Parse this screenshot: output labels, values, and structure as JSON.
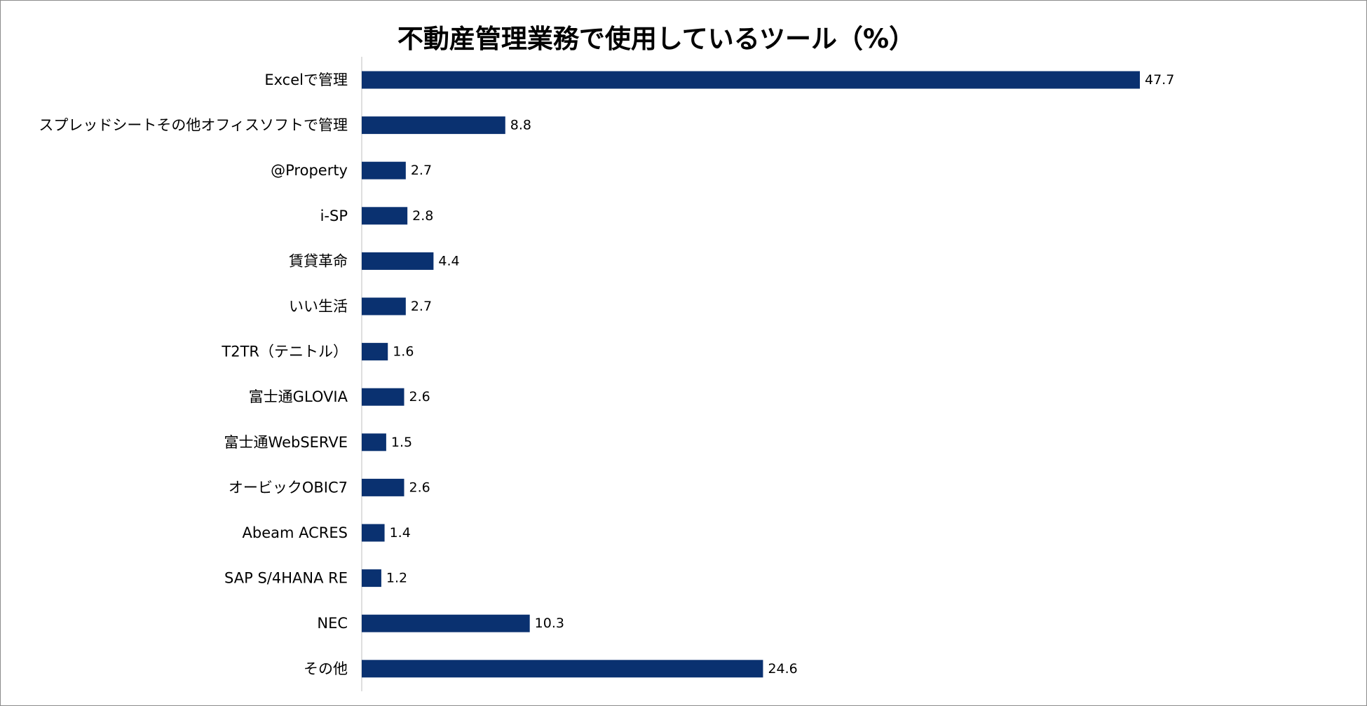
{
  "chart_data": {
    "type": "bar",
    "orientation": "horizontal",
    "title": "不動産管理業務で使用しているツール（%）",
    "xlabel": "",
    "ylabel": "",
    "grid": false,
    "legend": "none",
    "xlim": [
      0,
      54
    ],
    "categories": [
      "Excelで管理",
      "スプレッドシートその他オフィスソフトで管理",
      "@Property",
      "i-SP",
      "賃貸革命",
      "いい生活",
      "T2TR（テニトル）",
      "富士通GLOVIA",
      "富士通WebSERVE",
      "オービックOBIC7",
      "Abeam ACRES",
      "SAP S/4HANA  RE",
      "NEC",
      "その他"
    ],
    "values": [
      47.7,
      8.8,
      2.7,
      2.8,
      4.4,
      2.7,
      1.6,
      2.6,
      1.5,
      2.6,
      1.4,
      1.2,
      10.3,
      24.6
    ],
    "value_labels": [
      "47.7",
      "8.8",
      "2.7",
      "2.8",
      "4.4",
      "2.7",
      "1.6",
      "2.6",
      "1.5",
      "2.6",
      "1.4",
      "1.2",
      "10.3",
      "24.6"
    ],
    "colors": {
      "bar": "#0a3170",
      "axis": "#bfbfbf"
    }
  }
}
